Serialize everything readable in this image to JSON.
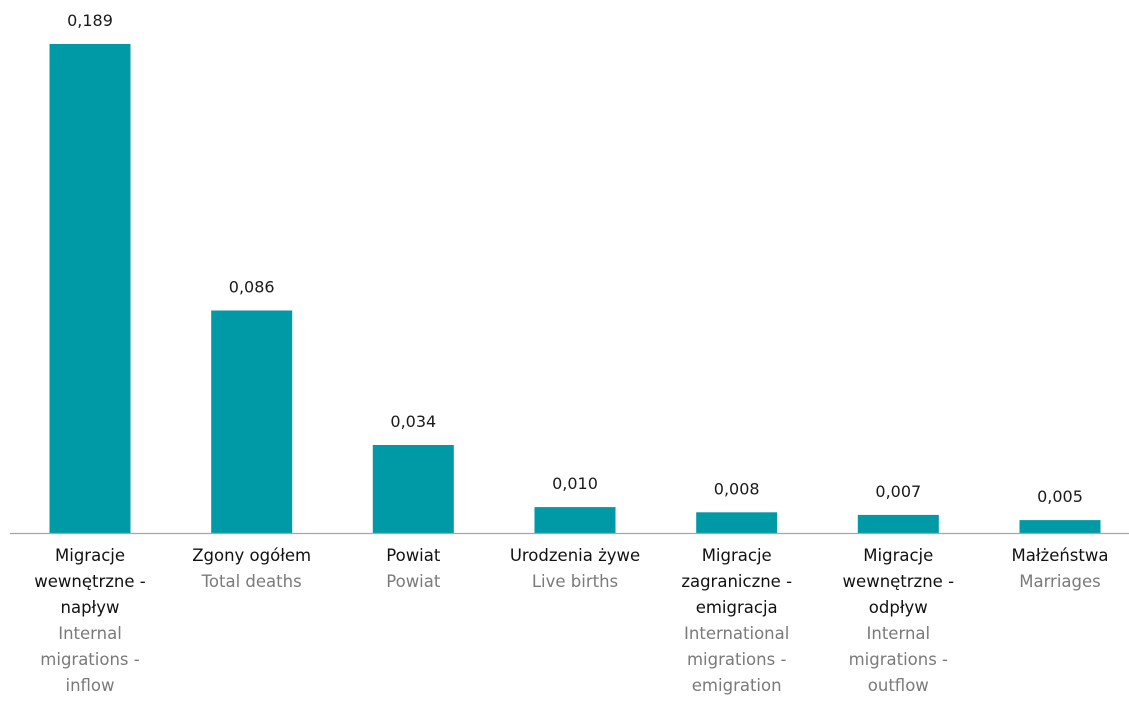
{
  "chart_data": {
    "type": "bar",
    "categories": [
      {
        "pl": "Migracje wewnętrzne - napływ",
        "en": "Internal migrations - inflow"
      },
      {
        "pl": "Zgony ogółem",
        "en": "Total deaths"
      },
      {
        "pl": "Powiat",
        "en": "Powiat"
      },
      {
        "pl": "Urodzenia żywe",
        "en": "Live births"
      },
      {
        "pl": "Migracje zagraniczne - emigracja",
        "en": "International migrations - emigration"
      },
      {
        "pl": "Migracje wewnętrzne - odpływ",
        "en": "Internal migrations - outflow"
      },
      {
        "pl": "Małżeństwa",
        "en": "Marriages"
      }
    ],
    "values": [
      0.189,
      0.086,
      0.034,
      0.01,
      0.008,
      0.007,
      0.005
    ],
    "value_labels": [
      "0,189",
      "0,086",
      "0,034",
      "0,010",
      "0,008",
      "0,007",
      "0,005"
    ],
    "ylim": [
      0,
      0.189
    ],
    "grid": false,
    "bar_color": "#009aa6",
    "axis_color": "#a6a6a6"
  }
}
